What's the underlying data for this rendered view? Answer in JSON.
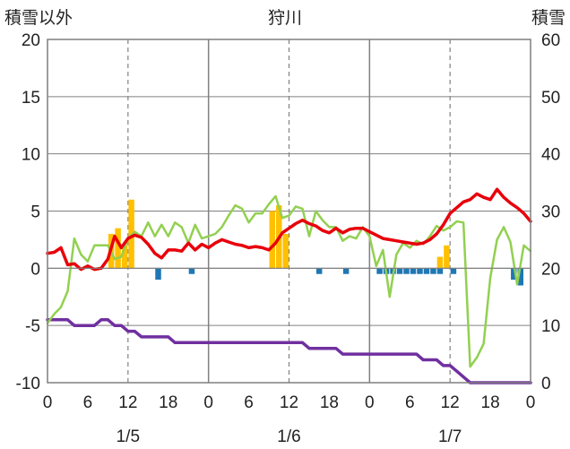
{
  "chart_data": {
    "type": "bar+line",
    "title": "狩川",
    "left_axis_label": "積雪以外",
    "right_axis_label": "積雪",
    "left_ylim": [
      -10,
      20
    ],
    "left_yticks": [
      "-10",
      "-5",
      "0",
      "5",
      "10",
      "15",
      "20"
    ],
    "right_ylim": [
      0,
      60
    ],
    "right_yticks": [
      "0",
      "10",
      "20",
      "30",
      "40",
      "50",
      "60"
    ],
    "xlim_hours": [
      0,
      72
    ],
    "x_tick_labels": [
      "0",
      "6",
      "12",
      "18",
      "0",
      "6",
      "12",
      "18",
      "0",
      "6",
      "12",
      "18",
      "0"
    ],
    "date_labels": [
      {
        "label": "1/5",
        "hour": 12
      },
      {
        "label": "1/6",
        "hour": 36
      },
      {
        "label": "1/7",
        "hour": 60
      }
    ],
    "grid": true,
    "colors": {
      "temperature": "#e8000b",
      "precip": "#ffc000",
      "snow_change": "#1f77b4",
      "wind": "#92d050",
      "snow_depth": "#7030a0",
      "grid": "#808080",
      "axis": "#7f7f7f"
    },
    "series_precip_bars": [
      {
        "hour": 10,
        "value": 3.0
      },
      {
        "hour": 11,
        "value": 3.5
      },
      {
        "hour": 12,
        "value": 2.0
      },
      {
        "hour": 13,
        "value": 6.0
      },
      {
        "hour": 34,
        "value": 5.0
      },
      {
        "hour": 35,
        "value": 5.5
      },
      {
        "hour": 36,
        "value": 3.0
      },
      {
        "hour": 59,
        "value": 1.0
      },
      {
        "hour": 60,
        "value": 2.0
      }
    ],
    "series_snow_change_bars": [
      {
        "hour": 17,
        "value": -1.0
      },
      {
        "hour": 22,
        "value": -0.5
      },
      {
        "hour": 41,
        "value": -0.5
      },
      {
        "hour": 45,
        "value": -0.5
      },
      {
        "hour": 50,
        "value": -0.5
      },
      {
        "hour": 51,
        "value": -0.5
      },
      {
        "hour": 52,
        "value": -0.5
      },
      {
        "hour": 53,
        "value": -0.5
      },
      {
        "hour": 54,
        "value": -0.5
      },
      {
        "hour": 55,
        "value": -0.5
      },
      {
        "hour": 56,
        "value": -0.5
      },
      {
        "hour": 57,
        "value": -0.5
      },
      {
        "hour": 58,
        "value": -0.5
      },
      {
        "hour": 59,
        "value": -0.5
      },
      {
        "hour": 61,
        "value": -0.5
      },
      {
        "hour": 70,
        "value": -1.0
      },
      {
        "hour": 71,
        "value": -1.5
      }
    ],
    "series_temperature": {
      "x": [
        0,
        1,
        2,
        3,
        4,
        5,
        6,
        7,
        8,
        9,
        10,
        11,
        12,
        13,
        14,
        15,
        16,
        17,
        18,
        19,
        20,
        21,
        22,
        23,
        24,
        25,
        26,
        27,
        28,
        29,
        30,
        31,
        32,
        33,
        34,
        35,
        36,
        37,
        38,
        39,
        40,
        41,
        42,
        43,
        44,
        45,
        46,
        47,
        48,
        49,
        50,
        51,
        52,
        53,
        54,
        55,
        56,
        57,
        58,
        59,
        60,
        61,
        62,
        63,
        64,
        65,
        66,
        67,
        68,
        69,
        70,
        71,
        72
      ],
      "y": [
        1.3,
        1.4,
        1.8,
        0.3,
        0.4,
        -0.1,
        0.2,
        -0.1,
        0.0,
        0.8,
        2.8,
        1.8,
        2.6,
        2.9,
        2.7,
        2.1,
        1.3,
        0.9,
        1.6,
        1.6,
        1.5,
        2.2,
        1.6,
        2.1,
        1.8,
        2.2,
        2.5,
        2.3,
        2.1,
        2.0,
        1.8,
        1.9,
        1.8,
        1.6,
        2.2,
        3.1,
        3.5,
        3.9,
        4.2,
        3.9,
        3.7,
        3.3,
        3.1,
        3.5,
        3.1,
        3.4,
        3.5,
        3.5,
        3.2,
        2.9,
        2.6,
        2.5,
        2.4,
        2.3,
        2.2,
        2.1,
        2.2,
        2.5,
        3.0,
        3.8,
        4.8,
        5.3,
        5.8,
        6.0,
        6.5,
        6.2,
        6.0,
        6.9,
        6.2,
        5.7,
        5.3,
        4.8,
        4.1
      ]
    },
    "series_wind": {
      "x": [
        0,
        1,
        2,
        3,
        4,
        5,
        6,
        7,
        8,
        9,
        10,
        11,
        12,
        13,
        14,
        15,
        16,
        17,
        18,
        19,
        20,
        21,
        22,
        23,
        24,
        25,
        26,
        27,
        28,
        29,
        30,
        31,
        32,
        33,
        34,
        35,
        36,
        37,
        38,
        39,
        40,
        41,
        42,
        43,
        44,
        45,
        46,
        47,
        48,
        49,
        50,
        51,
        52,
        53,
        54,
        55,
        56,
        57,
        58,
        59,
        60,
        61,
        62,
        63,
        64,
        65,
        66,
        67,
        68,
        69,
        70,
        71,
        72
      ],
      "y": [
        -4.8,
        -4.0,
        -3.4,
        -2.0,
        2.6,
        1.2,
        0.6,
        2.0,
        2.0,
        2.0,
        0.8,
        1.0,
        2.6,
        3.2,
        2.8,
        4.0,
        2.8,
        3.8,
        2.8,
        4.0,
        3.6,
        2.2,
        3.8,
        2.6,
        2.8,
        3.0,
        3.6,
        4.6,
        5.5,
        5.2,
        4.0,
        4.8,
        4.8,
        5.6,
        6.3,
        4.4,
        4.6,
        5.4,
        5.2,
        2.8,
        5.0,
        4.2,
        3.6,
        3.6,
        2.4,
        2.8,
        2.6,
        3.6,
        2.8,
        0.2,
        1.6,
        -2.5,
        1.2,
        2.2,
        1.8,
        2.4,
        2.1,
        2.8,
        3.7,
        3.3,
        3.6,
        4.1,
        4.0,
        -8.6,
        -7.8,
        -6.6,
        -0.8,
        2.5,
        3.6,
        2.3,
        -1.4,
        2.0,
        1.5
      ]
    },
    "series_snow_depth": {
      "x": [
        0,
        1,
        2,
        3,
        4,
        5,
        6,
        7,
        8,
        9,
        10,
        11,
        12,
        13,
        14,
        15,
        16,
        17,
        18,
        19,
        20,
        21,
        22,
        23,
        24,
        25,
        26,
        27,
        28,
        29,
        30,
        31,
        32,
        33,
        34,
        35,
        36,
        37,
        38,
        39,
        40,
        41,
        42,
        43,
        44,
        45,
        46,
        47,
        48,
        49,
        50,
        51,
        52,
        53,
        54,
        55,
        56,
        57,
        58,
        59,
        60,
        61,
        62,
        63,
        64,
        65,
        66,
        67,
        68,
        69,
        70,
        71,
        72
      ],
      "y": [
        11,
        11,
        11,
        11,
        10,
        10,
        10,
        10,
        11,
        11,
        10,
        10,
        9,
        9,
        8,
        8,
        8,
        8,
        8,
        7,
        7,
        7,
        7,
        7,
        7,
        7,
        7,
        7,
        7,
        7,
        7,
        7,
        7,
        7,
        7,
        7,
        7,
        7,
        7,
        6,
        6,
        6,
        6,
        6,
        5,
        5,
        5,
        5,
        5,
        5,
        5,
        5,
        5,
        5,
        5,
        5,
        4,
        4,
        4,
        3,
        3,
        2,
        1,
        0,
        0,
        0,
        0,
        0,
        0,
        0,
        0,
        0,
        0
      ]
    }
  }
}
